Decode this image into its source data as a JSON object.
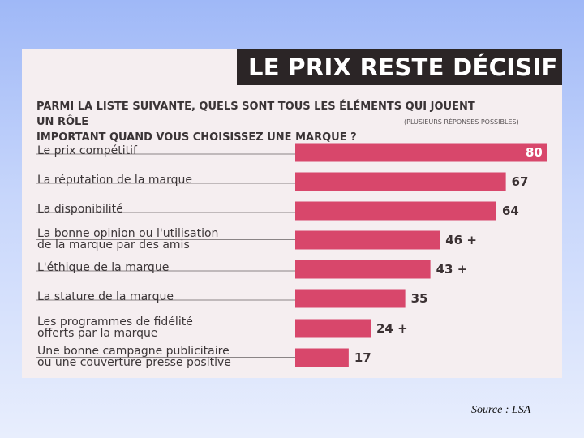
{
  "chart_data": {
    "type": "bar",
    "orientation": "horizontal",
    "title": "LE PRIX RESTE DÉCISIF",
    "question": [
      "PARMI LA LISTE SUIVANTE, QUELS SONT TOUS LES ÉLÉMENTS QUI JOUENT UN RÔLE",
      "IMPORTANT QUAND VOUS CHOISISSEZ UNE MARQUE ?"
    ],
    "note": "(PLUSIEURS RÉPONSES POSSIBLES)",
    "categories": [
      [
        "Le prix compétitif"
      ],
      [
        "La réputation de la marque"
      ],
      [
        "La disponibilité"
      ],
      [
        "La bonne opinion ou l'utilisation",
        "de la marque par des amis"
      ],
      [
        "L'éthique de la marque"
      ],
      [
        "La stature de la marque"
      ],
      [
        "Les programmes de fidélité",
        "offerts par la marque"
      ],
      [
        "Une bonne campagne publicitaire",
        "ou une couverture presse positive"
      ]
    ],
    "values": [
      80,
      67,
      64,
      46,
      43,
      35,
      24,
      17
    ],
    "value_labels": [
      "80",
      "67",
      "64",
      "46 +",
      "43 +",
      "35",
      "24 +",
      "17"
    ],
    "xlim": [
      0,
      80
    ],
    "bar_color": "#d8476b"
  },
  "source": "Source : LSA"
}
